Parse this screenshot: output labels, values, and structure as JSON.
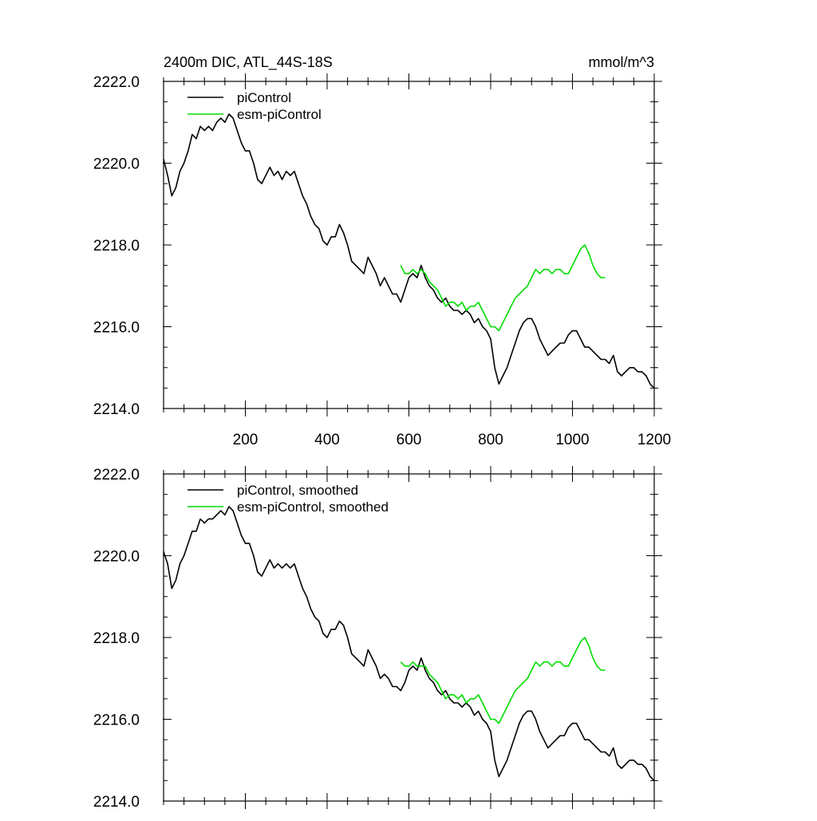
{
  "colors": {
    "piControl": "#000000",
    "esm_piControl": "#00dd00"
  },
  "chart_data": [
    {
      "type": "line",
      "title": "2400m DIC, ATL_44S-18S",
      "units": "mmol/m^3",
      "xlim": [
        0,
        1200
      ],
      "ylim": [
        2214.0,
        2222.0
      ],
      "xticks": [
        200,
        400,
        600,
        800,
        1000,
        1200
      ],
      "xtick_labels": [
        "200",
        "400",
        "600",
        "800",
        "1000",
        "1200"
      ],
      "yticks": [
        2214.0,
        2216.0,
        2218.0,
        2220.0,
        2222.0
      ],
      "ytick_labels": [
        "2214.0",
        "2216.0",
        "2218.0",
        "2220.0",
        "2222.0"
      ],
      "legend": [
        "piControl",
        "esm-piControl"
      ],
      "legend_location": "top-left",
      "series": [
        {
          "name": "piControl",
          "x": [
            0,
            10,
            20,
            30,
            40,
            50,
            60,
            70,
            80,
            90,
            100,
            110,
            120,
            130,
            140,
            150,
            160,
            170,
            180,
            190,
            200,
            210,
            220,
            230,
            240,
            250,
            260,
            270,
            280,
            290,
            300,
            310,
            320,
            330,
            340,
            350,
            360,
            370,
            380,
            390,
            400,
            410,
            420,
            430,
            440,
            450,
            460,
            470,
            480,
            490,
            500,
            510,
            520,
            530,
            540,
            550,
            560,
            570,
            580,
            590,
            600,
            610,
            620,
            630,
            640,
            650,
            660,
            670,
            680,
            690,
            700,
            710,
            720,
            730,
            740,
            750,
            760,
            770,
            780,
            790,
            800,
            810,
            820,
            830,
            840,
            850,
            860,
            870,
            880,
            890,
            900,
            910,
            920,
            930,
            940,
            950,
            960,
            970,
            980,
            990,
            1000,
            1010,
            1020,
            1030,
            1040,
            1050,
            1060,
            1070,
            1080,
            1090,
            1100,
            1110,
            1120,
            1130,
            1140,
            1150,
            1160,
            1170,
            1180,
            1190,
            1200
          ],
          "values": [
            2220.1,
            2219.7,
            2219.2,
            2219.4,
            2219.8,
            2220.0,
            2220.3,
            2220.7,
            2220.6,
            2220.9,
            2220.8,
            2220.9,
            2220.8,
            2221.0,
            2221.1,
            2221.0,
            2221.2,
            2221.1,
            2220.8,
            2220.5,
            2220.3,
            2220.3,
            2220.0,
            2219.6,
            2219.5,
            2219.7,
            2219.9,
            2219.7,
            2219.8,
            2219.6,
            2219.8,
            2219.7,
            2219.8,
            2219.5,
            2219.2,
            2219.0,
            2218.7,
            2218.5,
            2218.4,
            2218.1,
            2218.0,
            2218.2,
            2218.2,
            2218.5,
            2218.3,
            2218.0,
            2217.6,
            2217.5,
            2217.4,
            2217.3,
            2217.7,
            2217.5,
            2217.3,
            2217.0,
            2217.2,
            2217.0,
            2216.8,
            2216.8,
            2216.6,
            2216.9,
            2217.2,
            2217.3,
            2217.2,
            2217.5,
            2217.2,
            2217.0,
            2216.9,
            2216.7,
            2216.6,
            2216.7,
            2216.5,
            2216.4,
            2216.4,
            2216.3,
            2216.4,
            2216.3,
            2216.1,
            2216.2,
            2216.0,
            2215.9,
            2215.7,
            2215.0,
            2214.6,
            2214.8,
            2215.0,
            2215.3,
            2215.6,
            2215.9,
            2216.1,
            2216.2,
            2216.2,
            2216.0,
            2215.7,
            2215.5,
            2215.3,
            2215.4,
            2215.5,
            2215.6,
            2215.6,
            2215.8,
            2215.9,
            2215.9,
            2215.7,
            2215.5,
            2215.5,
            2215.4,
            2215.3,
            2215.2,
            2215.2,
            2215.1,
            2215.3,
            2214.9,
            2214.8,
            2214.9,
            2215.0,
            2215.0,
            2214.9,
            2214.9,
            2214.8,
            2214.6,
            2214.5
          ]
        },
        {
          "name": "esm-piControl",
          "x": [
            580,
            590,
            600,
            610,
            620,
            630,
            640,
            650,
            660,
            670,
            680,
            690,
            700,
            710,
            720,
            730,
            740,
            750,
            760,
            770,
            780,
            790,
            800,
            810,
            820,
            830,
            840,
            850,
            860,
            870,
            880,
            890,
            900,
            910,
            920,
            930,
            940,
            950,
            960,
            970,
            980,
            990,
            1000,
            1010,
            1020,
            1030,
            1040,
            1050,
            1060,
            1070,
            1080
          ],
          "values": [
            2217.5,
            2217.3,
            2217.3,
            2217.4,
            2217.3,
            2217.4,
            2217.3,
            2217.1,
            2217.0,
            2216.9,
            2216.7,
            2216.5,
            2216.6,
            2216.6,
            2216.5,
            2216.6,
            2216.4,
            2216.5,
            2216.5,
            2216.6,
            2216.4,
            2216.2,
            2216.0,
            2216.0,
            2215.9,
            2216.1,
            2216.3,
            2216.5,
            2216.7,
            2216.8,
            2216.9,
            2217.0,
            2217.2,
            2217.4,
            2217.3,
            2217.4,
            2217.4,
            2217.3,
            2217.4,
            2217.4,
            2217.3,
            2217.3,
            2217.5,
            2217.7,
            2217.9,
            2218.0,
            2217.8,
            2217.5,
            2217.3,
            2217.2,
            2217.2
          ]
        }
      ]
    },
    {
      "type": "line",
      "title": "",
      "units": "",
      "xlim": [
        0,
        1200
      ],
      "ylim": [
        2214.0,
        2222.0
      ],
      "xticks": [
        200,
        400,
        600,
        800,
        1000,
        1200
      ],
      "xtick_labels": [],
      "yticks": [
        2214.0,
        2216.0,
        2218.0,
        2220.0,
        2222.0
      ],
      "ytick_labels": [
        "2214.0",
        "2216.0",
        "2218.0",
        "2220.0",
        "2222.0"
      ],
      "legend": [
        "piControl, smoothed",
        "esm-piControl, smoothed"
      ],
      "legend_location": "top-left",
      "series": [
        {
          "name": "piControl, smoothed",
          "x": [
            0,
            10,
            20,
            30,
            40,
            50,
            60,
            70,
            80,
            90,
            100,
            110,
            120,
            130,
            140,
            150,
            160,
            170,
            180,
            190,
            200,
            210,
            220,
            230,
            240,
            250,
            260,
            270,
            280,
            290,
            300,
            310,
            320,
            330,
            340,
            350,
            360,
            370,
            380,
            390,
            400,
            410,
            420,
            430,
            440,
            450,
            460,
            470,
            480,
            490,
            500,
            510,
            520,
            530,
            540,
            550,
            560,
            570,
            580,
            590,
            600,
            610,
            620,
            630,
            640,
            650,
            660,
            670,
            680,
            690,
            700,
            710,
            720,
            730,
            740,
            750,
            760,
            770,
            780,
            790,
            800,
            810,
            820,
            830,
            840,
            850,
            860,
            870,
            880,
            890,
            900,
            910,
            920,
            930,
            940,
            950,
            960,
            970,
            980,
            990,
            1000,
            1010,
            1020,
            1030,
            1040,
            1050,
            1060,
            1070,
            1080,
            1090,
            1100,
            1110,
            1120,
            1130,
            1140,
            1150,
            1160,
            1170,
            1180,
            1190,
            1200
          ],
          "values": [
            2220.1,
            2219.8,
            2219.2,
            2219.4,
            2219.8,
            2220.0,
            2220.3,
            2220.6,
            2220.6,
            2220.9,
            2220.8,
            2220.9,
            2220.9,
            2221.0,
            2221.1,
            2221.0,
            2221.2,
            2221.1,
            2220.8,
            2220.5,
            2220.3,
            2220.3,
            2220.0,
            2219.6,
            2219.5,
            2219.7,
            2219.9,
            2219.7,
            2219.8,
            2219.7,
            2219.8,
            2219.7,
            2219.8,
            2219.5,
            2219.2,
            2219.0,
            2218.7,
            2218.5,
            2218.4,
            2218.1,
            2218.0,
            2218.2,
            2218.2,
            2218.4,
            2218.3,
            2218.0,
            2217.6,
            2217.5,
            2217.4,
            2217.3,
            2217.7,
            2217.5,
            2217.3,
            2217.0,
            2217.1,
            2217.0,
            2216.8,
            2216.8,
            2216.7,
            2216.9,
            2217.2,
            2217.3,
            2217.2,
            2217.5,
            2217.2,
            2217.0,
            2216.9,
            2216.7,
            2216.6,
            2216.7,
            2216.5,
            2216.4,
            2216.4,
            2216.3,
            2216.4,
            2216.3,
            2216.1,
            2216.2,
            2216.0,
            2215.9,
            2215.7,
            2215.0,
            2214.6,
            2214.8,
            2215.0,
            2215.3,
            2215.6,
            2215.9,
            2216.1,
            2216.2,
            2216.2,
            2216.0,
            2215.7,
            2215.5,
            2215.3,
            2215.4,
            2215.5,
            2215.6,
            2215.6,
            2215.8,
            2215.9,
            2215.9,
            2215.7,
            2215.5,
            2215.5,
            2215.4,
            2215.3,
            2215.2,
            2215.2,
            2215.1,
            2215.3,
            2214.9,
            2214.8,
            2214.9,
            2215.0,
            2215.0,
            2214.9,
            2214.9,
            2214.8,
            2214.6,
            2214.5
          ]
        },
        {
          "name": "esm-piControl, smoothed",
          "x": [
            580,
            590,
            600,
            610,
            620,
            630,
            640,
            650,
            660,
            670,
            680,
            690,
            700,
            710,
            720,
            730,
            740,
            750,
            760,
            770,
            780,
            790,
            800,
            810,
            820,
            830,
            840,
            850,
            860,
            870,
            880,
            890,
            900,
            910,
            920,
            930,
            940,
            950,
            960,
            970,
            980,
            990,
            1000,
            1010,
            1020,
            1030,
            1040,
            1050,
            1060,
            1070,
            1080
          ],
          "values": [
            2217.4,
            2217.3,
            2217.3,
            2217.4,
            2217.3,
            2217.3,
            2217.3,
            2217.1,
            2217.0,
            2216.9,
            2216.7,
            2216.5,
            2216.6,
            2216.6,
            2216.5,
            2216.6,
            2216.4,
            2216.5,
            2216.5,
            2216.6,
            2216.4,
            2216.2,
            2216.0,
            2216.0,
            2215.9,
            2216.1,
            2216.3,
            2216.5,
            2216.7,
            2216.8,
            2216.9,
            2217.0,
            2217.2,
            2217.4,
            2217.3,
            2217.4,
            2217.4,
            2217.3,
            2217.4,
            2217.4,
            2217.3,
            2217.3,
            2217.5,
            2217.7,
            2217.9,
            2218.0,
            2217.8,
            2217.5,
            2217.3,
            2217.2,
            2217.2
          ]
        }
      ]
    }
  ]
}
